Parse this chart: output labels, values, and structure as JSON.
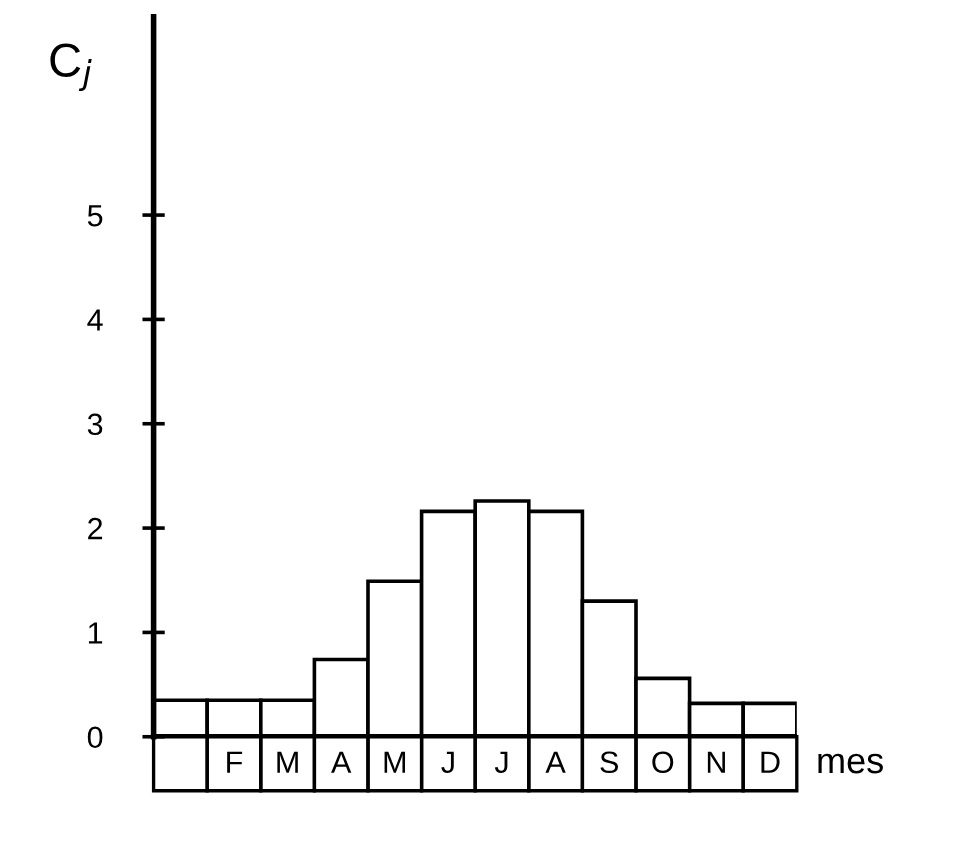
{
  "chart_data": {
    "type": "bar",
    "ylabel": "C$_{j}$",
    "xlabel": "mes",
    "categories": [
      null,
      "F",
      "M",
      "A",
      "M",
      "J",
      "J",
      "A",
      "S",
      "O",
      "N",
      "D"
    ],
    "values": [
      0.35,
      0.35,
      0.35,
      0.74,
      1.49,
      2.16,
      2.26,
      2.16,
      1.3,
      0.56,
      0.32,
      0.32
    ],
    "color": "#ffffff",
    "ylim": [
      0,
      6.9
    ],
    "yticks": [
      0,
      1,
      2,
      3,
      4,
      5
    ],
    "grid": false,
    "legend": false
  }
}
